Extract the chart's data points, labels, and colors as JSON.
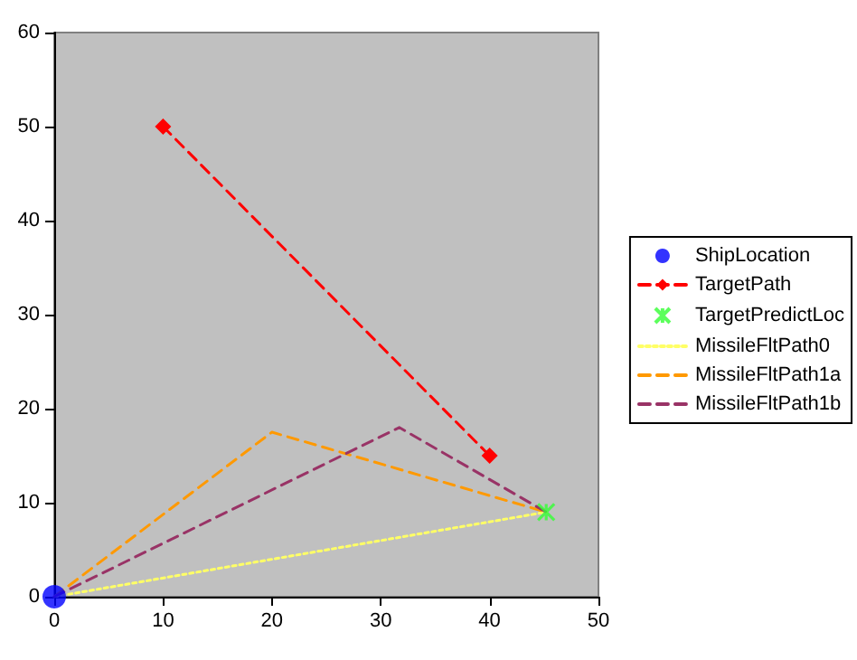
{
  "chart_data": {
    "type": "line",
    "xlim": [
      0,
      50
    ],
    "ylim": [
      0,
      60
    ],
    "xticks": [
      0,
      10,
      20,
      30,
      40,
      50
    ],
    "yticks": [
      0,
      10,
      20,
      30,
      40,
      50,
      60
    ],
    "grid": false,
    "legend": "right",
    "series": [
      {
        "name": "ShipLocation",
        "type": "scatter",
        "color": "#0000ff",
        "marker": "circle",
        "x": [
          0
        ],
        "values": [
          0
        ]
      },
      {
        "name": "TargetPath",
        "color": "#ff0000",
        "marker": "diamond",
        "line_style": "dashed",
        "x": [
          10,
          40
        ],
        "values": [
          50,
          15
        ]
      },
      {
        "name": "TargetPredictLoc",
        "type": "scatter",
        "color": "#33ff33",
        "marker": "cross",
        "x": [
          45.2
        ],
        "values": [
          9
        ]
      },
      {
        "name": "MissileFltPath0",
        "color": "#ffff66",
        "marker": "none",
        "line_style": "dotted",
        "x": [
          0,
          45.2
        ],
        "values": [
          0,
          9
        ]
      },
      {
        "name": "MissileFltPath1a",
        "color": "#ff9900",
        "marker": "none",
        "line_style": "dashed",
        "x": [
          0,
          20,
          45.2
        ],
        "values": [
          0,
          17.5,
          9
        ]
      },
      {
        "name": "MissileFltPath1b",
        "color": "#993366",
        "marker": "none",
        "line_style": "dashed",
        "x": [
          0,
          31.7,
          45.2
        ],
        "values": [
          0,
          18,
          9
        ]
      }
    ]
  }
}
